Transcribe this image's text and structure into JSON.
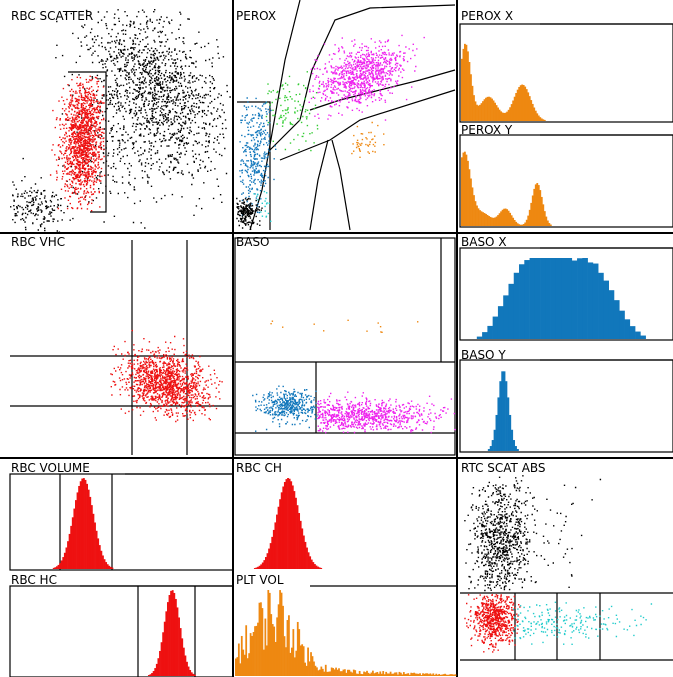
{
  "panels": {
    "rbc_scatter": {
      "title": "RBC SCATTER"
    },
    "perox": {
      "title": "PEROX"
    },
    "perox_x": {
      "title": "PEROX X"
    },
    "perox_y": {
      "title": "PEROX Y"
    },
    "rbc_vhc": {
      "title": "RBC VHC"
    },
    "baso": {
      "title": "BASO"
    },
    "baso_x": {
      "title": "BASO X"
    },
    "baso_y": {
      "title": "BASO Y"
    },
    "rbc_volume": {
      "title": "RBC VOLUME"
    },
    "rbc_ch": {
      "title": "RBC CH"
    },
    "rtc_scat_abs": {
      "title": "RTC SCAT ABS"
    },
    "rbc_hc": {
      "title": "RBC HC"
    },
    "plt_vol": {
      "title": "PLT VOL"
    }
  },
  "colors": {
    "red": "#ee1111",
    "black": "#000000",
    "blue": "#1177bb",
    "green": "#33cc33",
    "magenta": "#ee22ee",
    "orange": "#ee8811",
    "cyan": "#22cccc"
  },
  "chart_data": [
    {
      "type": "scatter",
      "panel": "rbc_scatter",
      "series": [
        {
          "color": "red"
        },
        {
          "color": "black"
        }
      ]
    },
    {
      "type": "scatter",
      "panel": "perox",
      "series": [
        {
          "color": "blue"
        },
        {
          "color": "green"
        },
        {
          "color": "magenta"
        },
        {
          "color": "orange"
        },
        {
          "color": "cyan"
        },
        {
          "color": "black"
        }
      ]
    },
    {
      "type": "bar",
      "panel": "perox_x",
      "histogram": true,
      "color": "orange"
    },
    {
      "type": "bar",
      "panel": "perox_y",
      "histogram": true,
      "color": "orange"
    },
    {
      "type": "scatter",
      "panel": "rbc_vhc",
      "series": [
        {
          "color": "red"
        }
      ]
    },
    {
      "type": "scatter",
      "panel": "baso",
      "series": [
        {
          "color": "blue"
        },
        {
          "color": "magenta"
        },
        {
          "color": "orange"
        }
      ]
    },
    {
      "type": "bar",
      "panel": "baso_x",
      "histogram": true,
      "color": "blue"
    },
    {
      "type": "bar",
      "panel": "baso_y",
      "histogram": true,
      "color": "blue"
    },
    {
      "type": "area",
      "panel": "rbc_volume",
      "histogram": true,
      "color": "red"
    },
    {
      "type": "area",
      "panel": "rbc_ch",
      "histogram": true,
      "color": "red"
    },
    {
      "type": "scatter",
      "panel": "rtc_scat_abs",
      "series": [
        {
          "color": "black"
        },
        {
          "color": "red"
        },
        {
          "color": "cyan"
        }
      ]
    },
    {
      "type": "area",
      "panel": "rbc_hc",
      "histogram": true,
      "color": "red"
    },
    {
      "type": "bar",
      "panel": "plt_vol",
      "histogram": true,
      "color": "orange"
    }
  ]
}
